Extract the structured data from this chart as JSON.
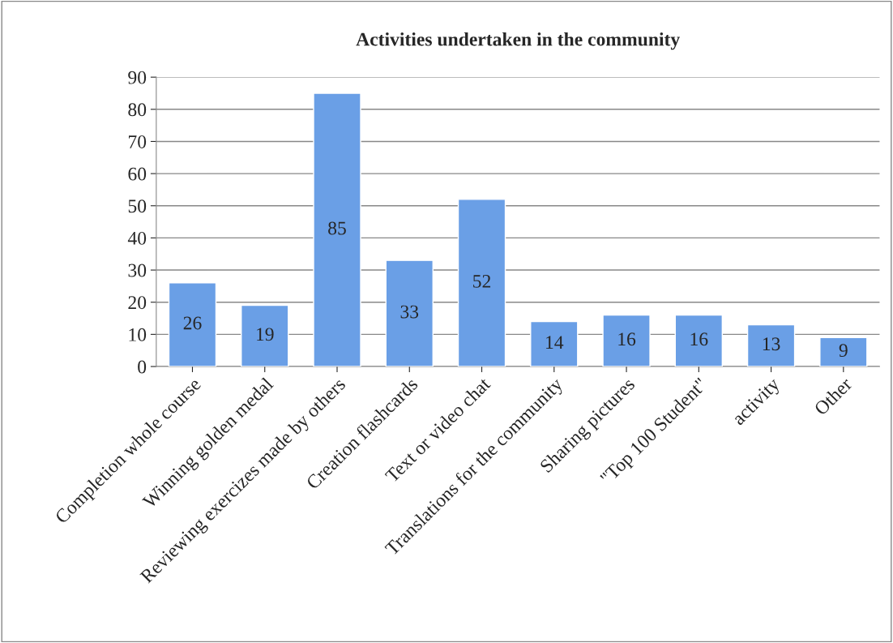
{
  "chart_data": {
    "type": "bar",
    "title": "Activities undertaken in the community",
    "categories": [
      "Completion whole course",
      "Winning golden medal",
      "Reviewing exercizes made by others",
      "Creation flashcards",
      "Text or video chat",
      "Translations for the community",
      "Sharing pictures",
      "\"Top 100 Student\"",
      "activity",
      "Other"
    ],
    "values": [
      26,
      19,
      85,
      33,
      52,
      14,
      16,
      16,
      13,
      9
    ],
    "color": "#6a9fe6",
    "ylim": [
      0,
      90
    ],
    "yticks": [
      0,
      10,
      20,
      30,
      40,
      50,
      60,
      70,
      80,
      90
    ],
    "grid": "y",
    "data_labels": true
  }
}
